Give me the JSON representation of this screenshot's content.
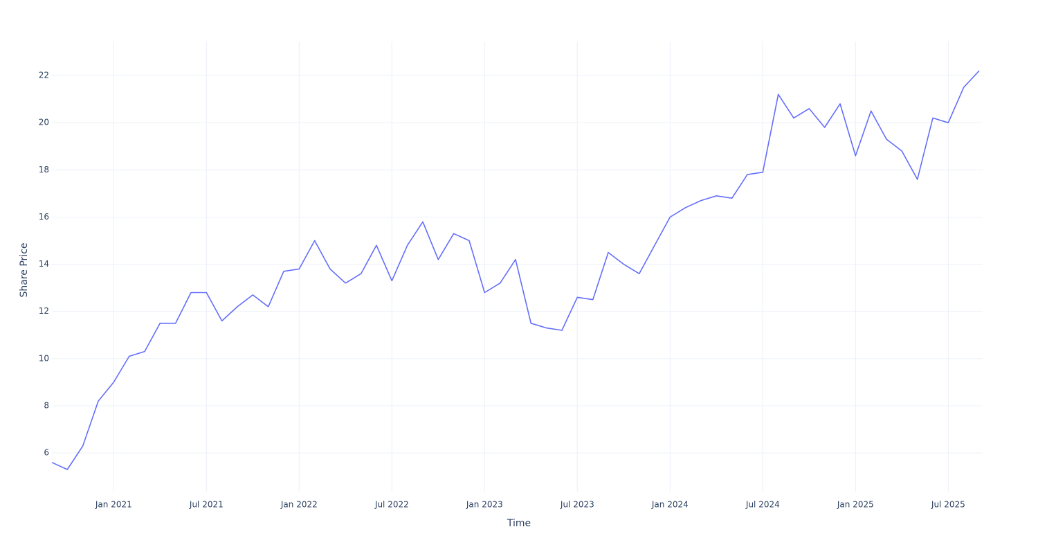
{
  "chart_data": {
    "type": "line",
    "x_title": "Time",
    "y_title": "Share Price",
    "x": [
      "2020-09",
      "2020-10",
      "2020-11",
      "2020-12",
      "2021-01",
      "2021-02",
      "2021-03",
      "2021-04",
      "2021-05",
      "2021-06",
      "2021-07",
      "2021-08",
      "2021-09",
      "2021-10",
      "2021-11",
      "2021-12",
      "2022-01",
      "2022-02",
      "2022-03",
      "2022-04",
      "2022-05",
      "2022-06",
      "2022-07",
      "2022-08",
      "2022-09",
      "2022-10",
      "2022-11",
      "2022-12",
      "2023-01",
      "2023-02",
      "2023-03",
      "2023-04",
      "2023-05",
      "2023-06",
      "2023-07",
      "2023-08",
      "2023-09",
      "2023-10",
      "2023-11",
      "2023-12",
      "2024-01",
      "2024-02",
      "2024-03",
      "2024-04",
      "2024-05",
      "2024-06",
      "2024-07",
      "2024-08",
      "2024-09",
      "2024-10",
      "2024-11",
      "2024-12",
      "2025-01",
      "2025-02",
      "2025-03",
      "2025-04",
      "2025-05",
      "2025-06",
      "2025-07",
      "2025-08",
      "2025-09"
    ],
    "series": [
      {
        "name": "Share Price",
        "color": "#636efa",
        "values": [
          5.6,
          5.3,
          6.3,
          8.2,
          9.0,
          10.1,
          10.3,
          11.5,
          11.5,
          12.8,
          12.8,
          11.6,
          12.2,
          12.7,
          12.2,
          13.7,
          13.8,
          15.0,
          13.8,
          13.2,
          13.6,
          14.8,
          13.3,
          14.8,
          15.8,
          14.2,
          15.3,
          15.0,
          12.8,
          13.2,
          14.2,
          11.5,
          11.3,
          11.2,
          12.6,
          12.5,
          14.5,
          14.0,
          13.6,
          14.8,
          16.0,
          16.4,
          16.7,
          16.9,
          16.8,
          17.8,
          17.9,
          21.2,
          20.2,
          20.6,
          19.8,
          20.8,
          18.6,
          20.5,
          19.3,
          18.8,
          17.6,
          20.2,
          20.0,
          21.5,
          22.2
        ]
      }
    ],
    "xlim": [
      "2020-09",
      "2025-09"
    ],
    "xticks": [
      {
        "value": "2021-01",
        "label": "Jan 2021"
      },
      {
        "value": "2021-07",
        "label": "Jul 2021"
      },
      {
        "value": "2022-01",
        "label": "Jan 2022"
      },
      {
        "value": "2022-07",
        "label": "Jul 2022"
      },
      {
        "value": "2023-01",
        "label": "Jan 2023"
      },
      {
        "value": "2023-07",
        "label": "Jul 2023"
      },
      {
        "value": "2024-01",
        "label": "Jan 2024"
      },
      {
        "value": "2024-07",
        "label": "Jul 2024"
      },
      {
        "value": "2025-01",
        "label": "Jan 2025"
      },
      {
        "value": "2025-07",
        "label": "Jul 2025"
      }
    ],
    "ylim": [
      4.36,
      23.44
    ],
    "yticks": [
      6,
      8,
      10,
      12,
      14,
      16,
      18,
      20,
      22
    ],
    "grid": true
  }
}
